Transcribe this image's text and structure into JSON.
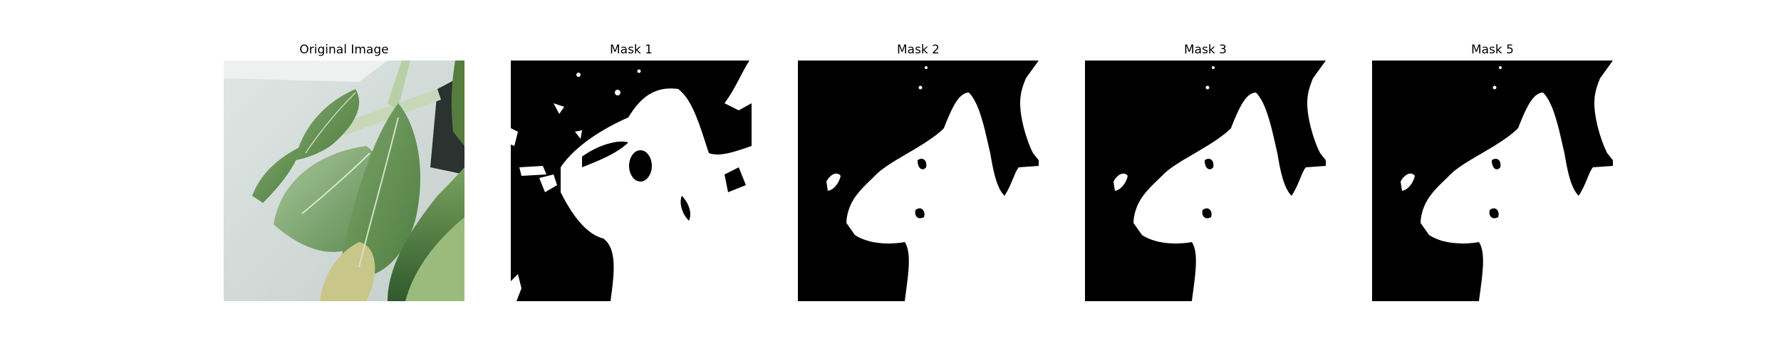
{
  "panels": [
    {
      "title": "Original Image"
    },
    {
      "title": "Mask 1"
    },
    {
      "title": "Mask 2"
    },
    {
      "title": "Mask 3"
    },
    {
      "title": "Mask 5"
    }
  ],
  "colors": {
    "mask_foreground": "#ffffff",
    "mask_background": "#000000",
    "photo_background": "#d6dddb",
    "leaf_dark": "#3f6b35",
    "leaf_light": "#9cbf86"
  }
}
